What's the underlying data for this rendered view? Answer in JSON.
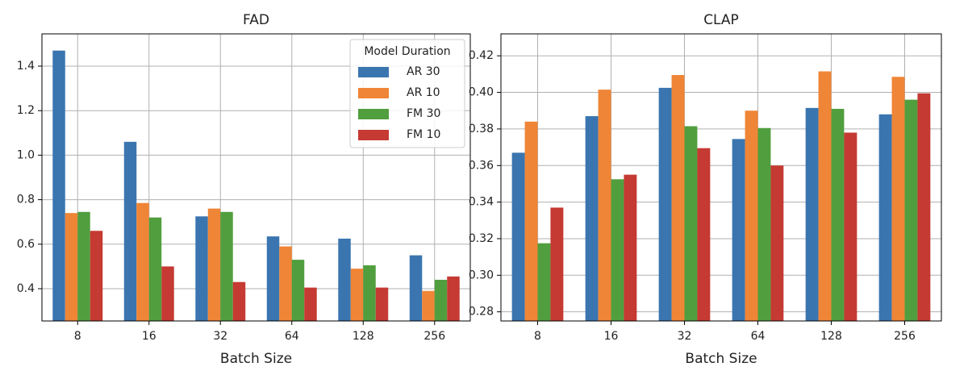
{
  "chart_data": [
    {
      "type": "bar",
      "title": "FAD",
      "x_label": "Batch Size",
      "categories": [
        "8",
        "16",
        "32",
        "64",
        "128",
        "256"
      ],
      "series": [
        {
          "name": "AR 30",
          "color": "#3a75b0",
          "values": [
            1.47,
            1.06,
            0.725,
            0.635,
            0.625,
            0.55
          ]
        },
        {
          "name": "AR 10",
          "color": "#ef8536",
          "values": [
            0.74,
            0.785,
            0.76,
            0.59,
            0.49,
            0.39
          ]
        },
        {
          "name": "FM 30",
          "color": "#519e3e",
          "values": [
            0.745,
            0.72,
            0.745,
            0.53,
            0.505,
            0.44
          ]
        },
        {
          "name": "FM 10",
          "color": "#c53a32",
          "values": [
            0.66,
            0.5,
            0.43,
            0.405,
            0.405,
            0.455
          ]
        }
      ],
      "ylim": [
        0.255,
        1.545
      ],
      "yticks": [
        0.4,
        0.6,
        0.8,
        {
          "value": 1.0,
          "label": "1.0"
        },
        1.2,
        1.4
      ],
      "grid": true,
      "legend": "upper right",
      "legend_title": "Model Duration"
    },
    {
      "type": "bar",
      "title": "CLAP",
      "x_label": "Batch Size",
      "categories": [
        "8",
        "16",
        "32",
        "64",
        "128",
        "256"
      ],
      "series": [
        {
          "color": "#3a75b0",
          "values": [
            0.367,
            0.387,
            0.4025,
            0.3745,
            0.3915,
            0.388
          ]
        },
        {
          "color": "#ef8536",
          "values": [
            0.384,
            0.4015,
            0.4095,
            0.39,
            0.4115,
            0.4085
          ]
        },
        {
          "color": "#519e3e",
          "values": [
            0.3175,
            0.3525,
            0.3815,
            0.3805,
            0.391,
            0.396
          ]
        },
        {
          "color": "#c53a32",
          "values": [
            0.337,
            0.355,
            0.3695,
            0.36,
            0.378,
            0.3995
          ]
        }
      ],
      "ylim": [
        0.275,
        0.432
      ],
      "yticks": [
        0.28,
        {
          "value": 0.3,
          "label": "0.30"
        },
        0.32,
        0.34,
        0.36,
        0.38,
        {
          "value": 0.4,
          "label": "0.40"
        },
        0.42
      ],
      "grid": true
    }
  ]
}
